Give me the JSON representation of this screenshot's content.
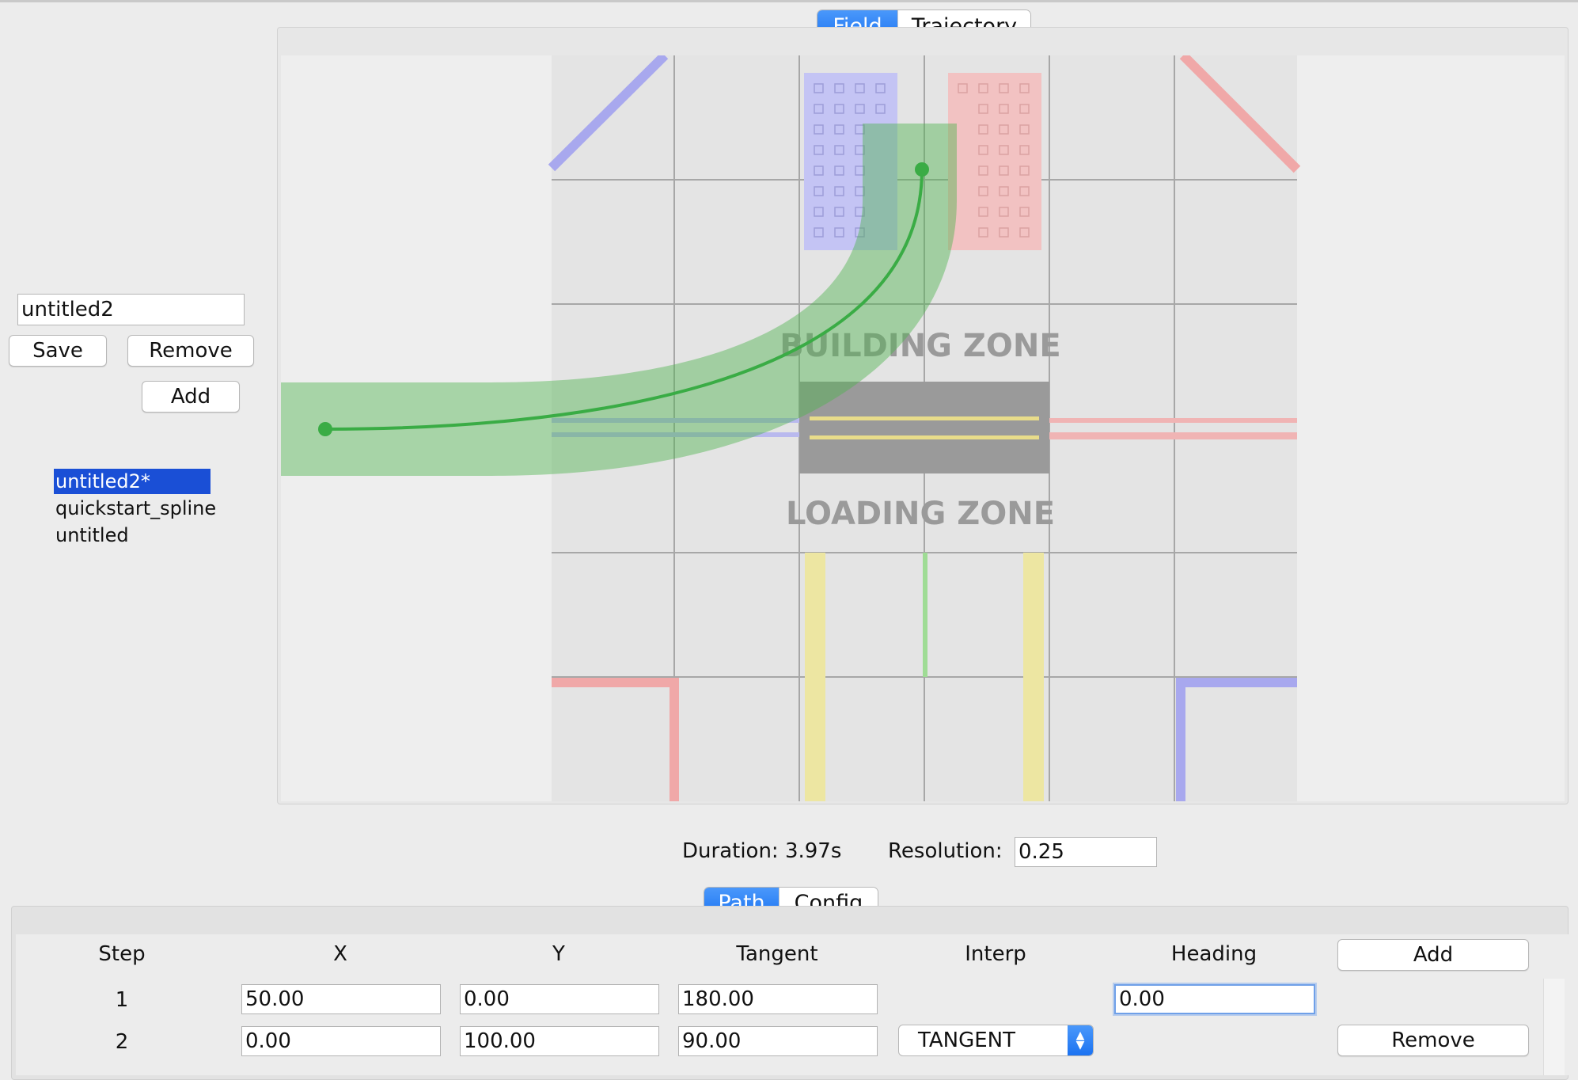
{
  "view_tabs": [
    {
      "label": "Field",
      "active": true
    },
    {
      "label": "Trajectory",
      "active": false
    }
  ],
  "sidebar": {
    "name_value": "untitled2",
    "save_label": "Save",
    "remove_label": "Remove",
    "add_label": "Add",
    "paths": [
      "untitled2*",
      "quickstart_spline",
      "untitled"
    ],
    "selected_index": 0
  },
  "field": {
    "building_zone_label": "BUILDING ZONE",
    "loading_zone_label": "LOADING ZONE"
  },
  "status": {
    "duration_label": "Duration:",
    "duration_value": "3.97s",
    "resolution_label": "Resolution:",
    "resolution_value": "0.25"
  },
  "editor_tabs": [
    {
      "label": "Path",
      "active": true
    },
    {
      "label": "Config",
      "active": false
    }
  ],
  "table": {
    "headers": {
      "step": "Step",
      "x": "X",
      "y": "Y",
      "tangent": "Tangent",
      "interp": "Interp",
      "heading": "Heading"
    },
    "add_label": "Add",
    "remove_label": "Remove",
    "rows": [
      {
        "step": "1",
        "x": "50.00",
        "y": "0.00",
        "tangent": "180.00",
        "heading": "0.00"
      },
      {
        "step": "2",
        "x": "0.00",
        "y": "100.00",
        "tangent": "90.00",
        "interp": "TANGENT"
      }
    ]
  },
  "colors": {
    "accent": "#1c73f1",
    "selection": "#1a4fd6",
    "path_green": "#3aac45",
    "blue_alliance": "#8e8ef0",
    "red_alliance": "#f09a9a"
  }
}
